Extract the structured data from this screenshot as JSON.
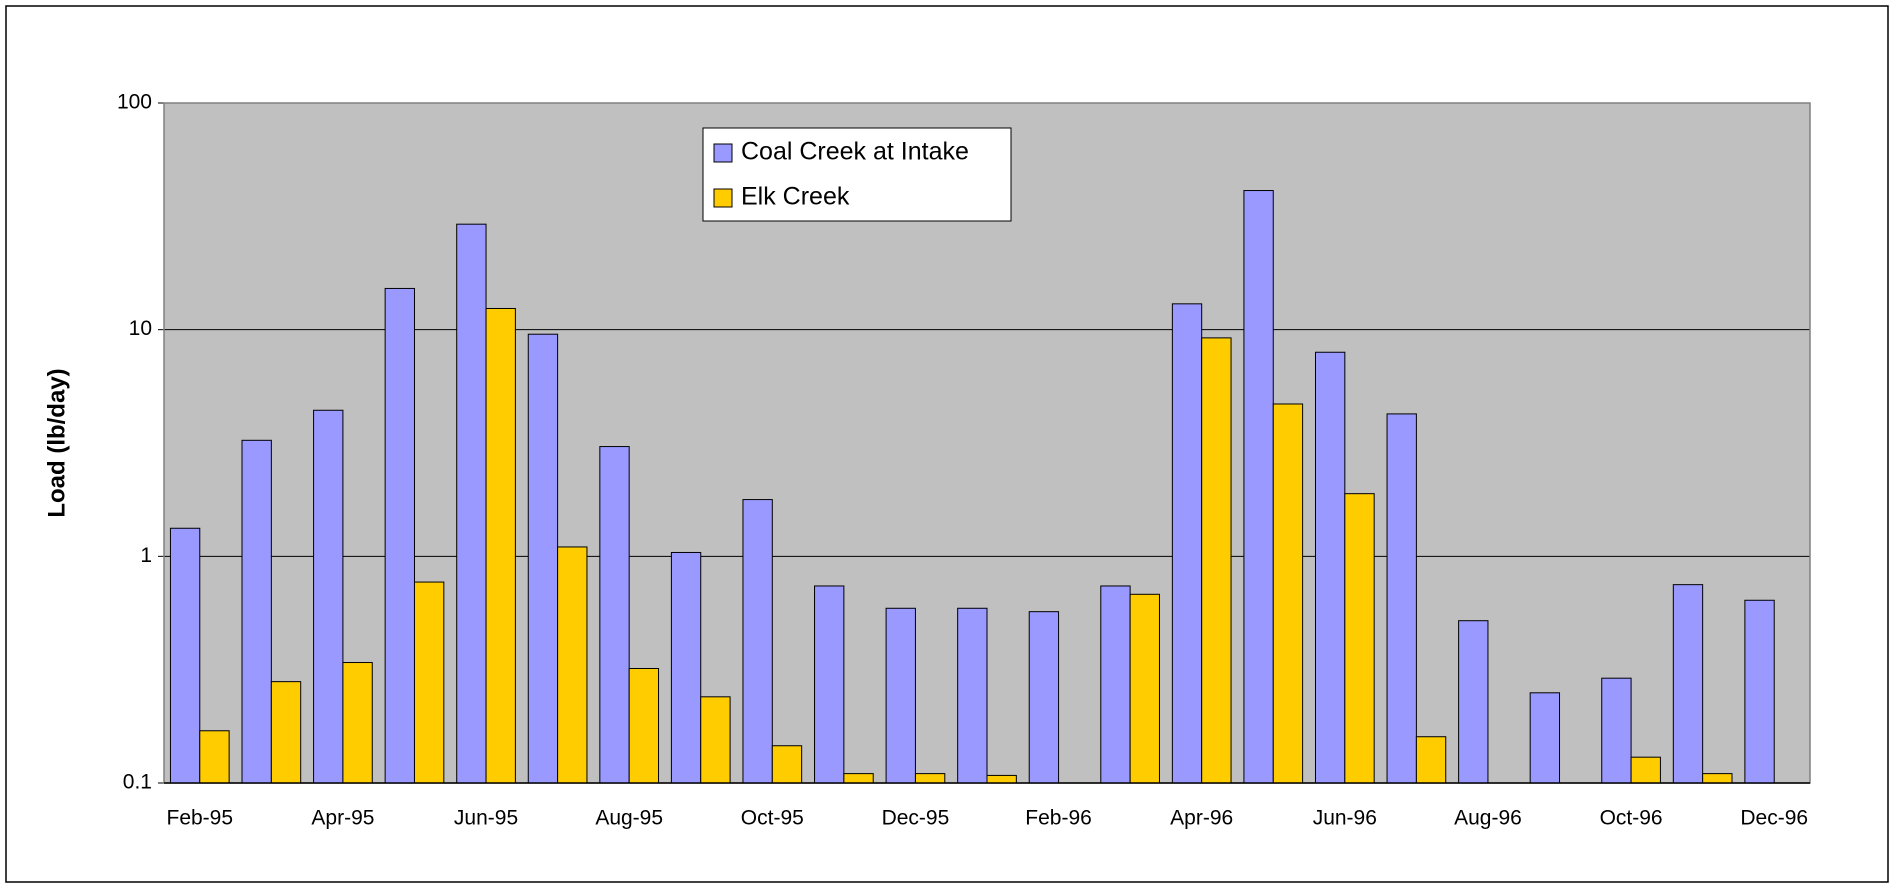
{
  "chart_data": {
    "type": "bar",
    "ylabel": "Load (lb/day)",
    "categories": [
      "Feb-95",
      null,
      "Apr-95",
      null,
      "Jun-95",
      null,
      "Aug-95",
      null,
      "Oct-95",
      null,
      "Dec-95",
      null,
      "Feb-96",
      null,
      "Apr-96",
      null,
      "Jun-96",
      null,
      "Aug-96",
      null,
      "Oct-96",
      null,
      "Dec-96"
    ],
    "series": [
      {
        "name": "Coal Creek at Intake",
        "color": "#9999ff",
        "values": [
          1.33,
          3.25,
          4.41,
          15.2,
          29.2,
          9.55,
          3.05,
          1.04,
          1.78,
          0.74,
          0.59,
          0.59,
          0.57,
          0.74,
          13.0,
          41.1,
          7.95,
          4.25,
          0.52,
          0.25,
          0.29,
          0.75,
          0.64
        ]
      },
      {
        "name": "Elk Creek",
        "color": "#ffcc00",
        "values": [
          0.17,
          0.28,
          0.34,
          0.77,
          12.4,
          1.1,
          0.32,
          0.24,
          0.146,
          0.11,
          0.11,
          0.108,
          null,
          0.68,
          9.2,
          4.7,
          1.89,
          0.16,
          null,
          null,
          0.13,
          0.11,
          null
        ]
      }
    ],
    "ylim": [
      0.1,
      100
    ],
    "yticks": [
      0.1,
      1,
      10,
      100
    ],
    "log_y": true,
    "grid": true,
    "plot_background": "#c0c0c0"
  }
}
